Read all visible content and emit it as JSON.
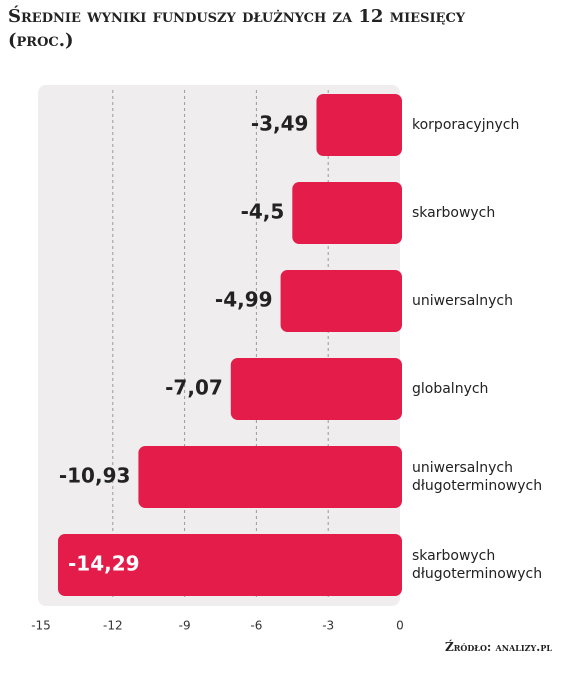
{
  "chart_data": {
    "type": "bar",
    "orientation": "horizontal",
    "title": "Średnie wyniki funduszy dłużnych za 12 miesięcy",
    "subtitle": "(proc.)",
    "source": "Źródło: analizy.pl",
    "categories": [
      "korporacyjnych",
      "skarbowych",
      "uniwersalnych",
      "globalnych",
      "uniwersalnych długoterminowych",
      "skarbowych długoterminowych"
    ],
    "values": [
      -3.49,
      -4.5,
      -4.99,
      -7.07,
      -10.93,
      -14.29
    ],
    "value_labels": [
      "-3,49",
      "-4,5",
      "-4,99",
      "-7,07",
      "-10,93",
      "-14,29"
    ],
    "color": "#e31c4a",
    "xlim": [
      -15,
      0
    ],
    "xticks": [
      -15,
      -12,
      -9,
      -6,
      -3,
      0
    ],
    "grid": true
  }
}
